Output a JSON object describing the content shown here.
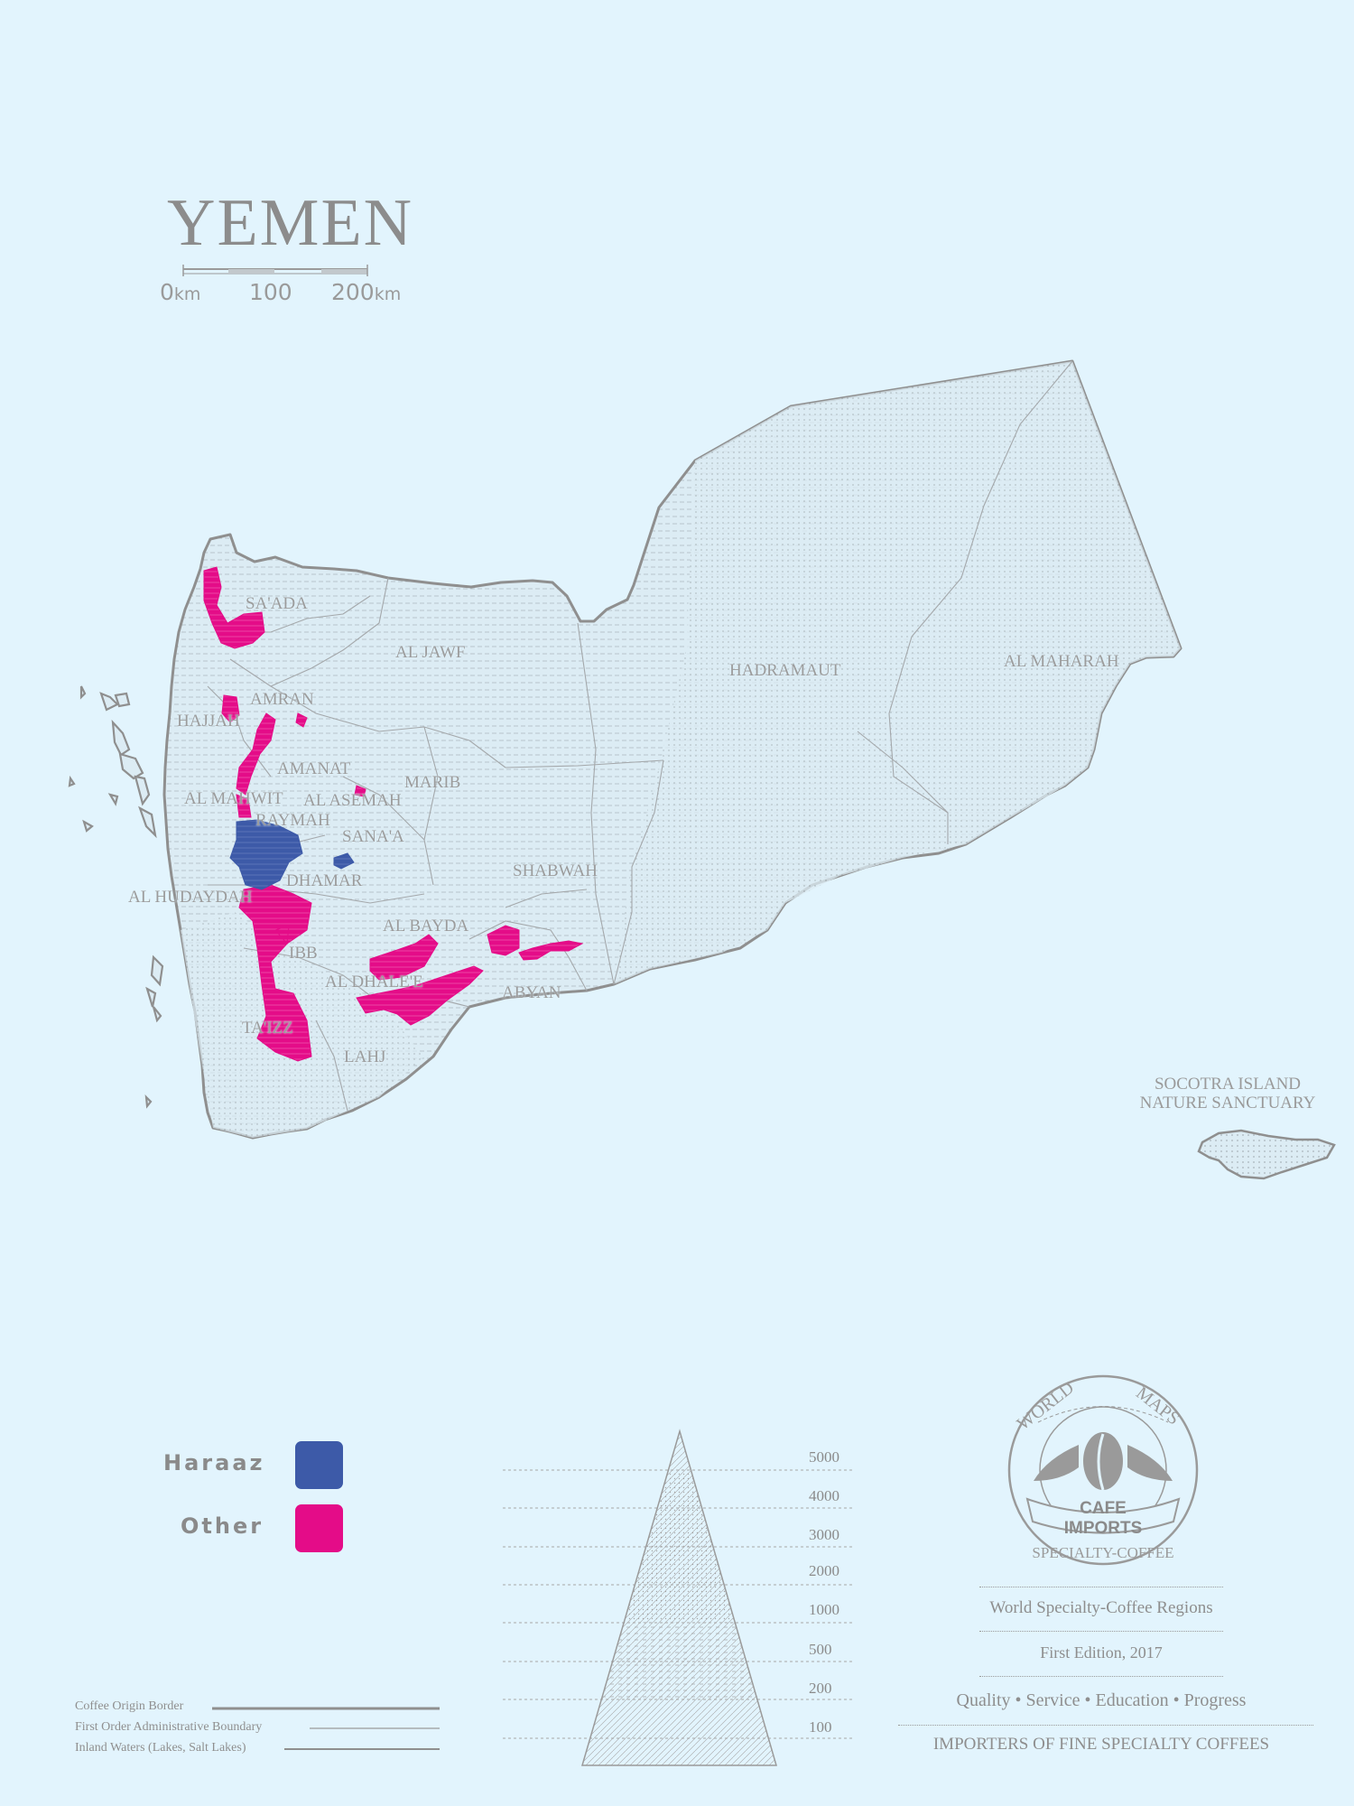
{
  "map": {
    "title": "YEMEN",
    "scale": {
      "start": "0",
      "start_unit": "km",
      "mid": "100",
      "end": "200",
      "end_unit": "km"
    },
    "regions": [
      "SA'ADA",
      "AL JAWF",
      "HADRAMAUT",
      "AL MAHARAH",
      "AMRAN",
      "HAJJAH",
      "AMANAT",
      "MARIB",
      "AL MAHWIT",
      "AL ASEMAH",
      "RAYMAH",
      "SANA'A",
      "SHABWAH",
      "DHAMAR",
      "AL HUDAYDAH",
      "AL BAYDA",
      "IBB",
      "AL DHALE'E",
      "ABYAN",
      "TA'IZZ",
      "LAHJ"
    ],
    "island_label_1": "SOCOTRA ISLAND",
    "island_label_2": "NATURE SANCTUARY"
  },
  "legend": {
    "items": [
      {
        "label": "Haraaz",
        "color": "#3d5aa8"
      },
      {
        "label": "Other",
        "color": "#e40c88"
      }
    ],
    "lines": [
      "Coffee Origin Border",
      "First Order Administrative Boundary",
      "Inland Waters (Lakes, Salt Lakes)"
    ]
  },
  "elevation": {
    "levels": [
      "5000",
      "4000",
      "3000",
      "2000",
      "1000",
      "500",
      "200",
      "100"
    ]
  },
  "logo": {
    "top_left": "WORLD",
    "top_right": "MAPS",
    "banner": "CAFE IMPORTS",
    "bottom": "SPECIALTY-COFFEE"
  },
  "footer": {
    "line1": "World Specialty-Coffee Regions",
    "line2": "First Edition, 2017",
    "line3": "Quality • Service • Education • Progress",
    "line4": "IMPORTERS OF FINE SPECIALTY COFFEES"
  },
  "colors": {
    "background": "#e2f4fd",
    "haraaz": "#3d5aa8",
    "other": "#e40c88",
    "outline": "#8f8f8f"
  }
}
